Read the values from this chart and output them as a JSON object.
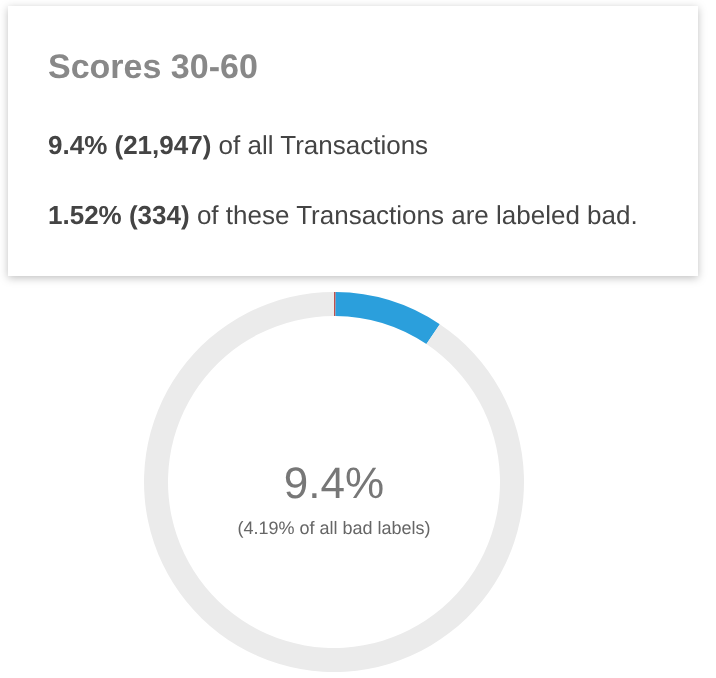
{
  "chart_data": {
    "type": "donut",
    "title": "Scores 30-60",
    "subtitle": "9.4% (21,947) of all Transactions",
    "annotations": [
      "1.52% (334) of these Transactions are labeled bad.",
      "9.4%",
      "(4.19% of all bad labels)"
    ],
    "categories": [
      null,
      null,
      null
    ],
    "values": [
      0.14,
      9.26,
      90.6
    ],
    "colors": [
      "#c0504d",
      "#2b9fdc",
      "#ebebeb"
    ]
  }
}
